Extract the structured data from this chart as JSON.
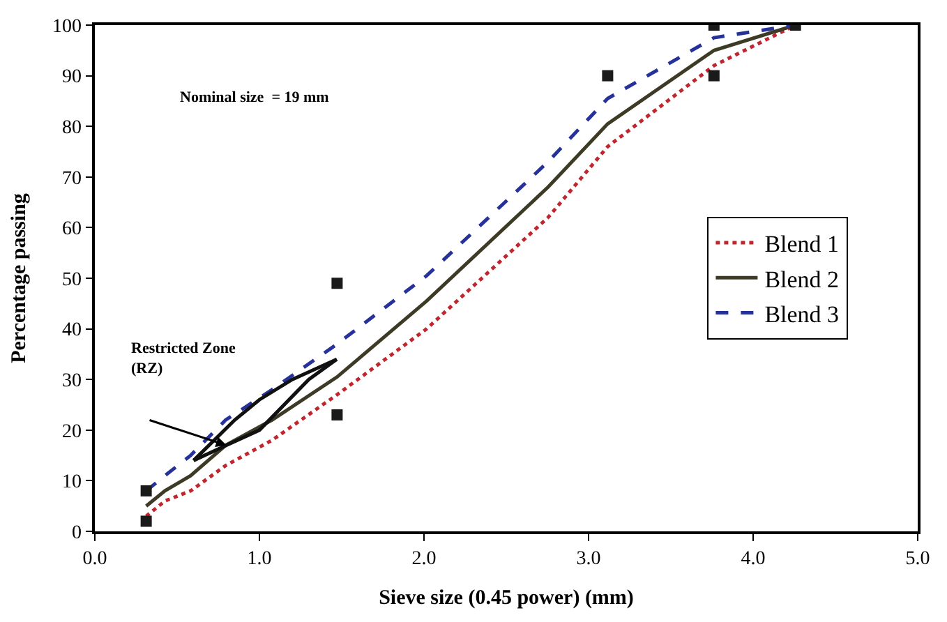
{
  "chart_data": {
    "type": "line",
    "xlabel": "Sieve size (0.45 power) (mm)",
    "ylabel": "Percentage passing",
    "xlim": [
      0,
      5
    ],
    "ylim": [
      0,
      100
    ],
    "xticks": [
      {
        "value": 0,
        "label": "0.0"
      },
      {
        "value": 1,
        "label": "1.0"
      },
      {
        "value": 2,
        "label": "2.0"
      },
      {
        "value": 3,
        "label": "3.0"
      },
      {
        "value": 4,
        "label": "4.0"
      },
      {
        "value": 5,
        "label": "5.0"
      }
    ],
    "yticks": [
      0,
      10,
      20,
      30,
      40,
      50,
      60,
      70,
      80,
      90,
      100
    ],
    "legend": "right",
    "x": [
      0.312,
      0.426,
      0.582,
      0.795,
      1.077,
      1.472,
      2.016,
      2.754,
      3.116,
      3.762,
      4.257
    ],
    "series": [
      {
        "name": "Blend 1",
        "color": "#c0262d",
        "line_style": "dotted",
        "values": [
          3,
          6,
          8,
          13,
          18,
          27,
          40,
          62,
          76,
          92,
          100
        ]
      },
      {
        "name": "Blend 2",
        "color": "#3d3a26",
        "line_style": "solid",
        "values": [
          5,
          8,
          11,
          17,
          22,
          30.5,
          45.5,
          68,
          80.5,
          95,
          100
        ]
      },
      {
        "name": "Blend 3",
        "color": "#26329a",
        "line_style": "dashed",
        "values": [
          8,
          11,
          15,
          22,
          28,
          37,
          50.5,
          73,
          85.5,
          97.5,
          100
        ]
      },
      {
        "type": "scatter",
        "marker": "square",
        "color": "#1a1a1a",
        "x": [
          0.312,
          0.312,
          1.472,
          1.472,
          3.116,
          3.762,
          3.762,
          4.257
        ],
        "values": [
          2,
          8,
          23,
          49,
          90,
          90,
          100,
          100
        ]
      },
      {
        "type": "line",
        "color": "#111111",
        "line_style": "solid",
        "x": [
          0.6,
          0.85,
          1.0,
          1.2,
          1.47
        ],
        "values": [
          14,
          22,
          26,
          30,
          34
        ]
      },
      {
        "type": "line",
        "color": "#111111",
        "line_style": "solid",
        "x": [
          0.6,
          0.8,
          1.0,
          1.3,
          1.47
        ],
        "values": [
          14,
          17,
          20,
          30,
          34
        ]
      }
    ],
    "annotations": [
      "Nominal size  = 19 mm",
      "Restricted Zone\n(RZ)"
    ]
  }
}
